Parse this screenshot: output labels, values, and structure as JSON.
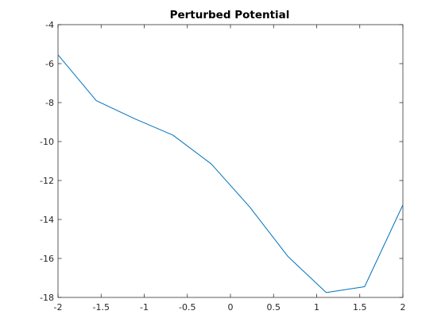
{
  "chart_data": {
    "type": "line",
    "title": "Perturbed Potential",
    "xlabel": "",
    "ylabel": "",
    "xlim": [
      -2,
      2
    ],
    "ylim": [
      -18,
      -4
    ],
    "xticks": [
      -2,
      -1.5,
      -1,
      -0.5,
      0,
      0.5,
      1,
      1.5,
      2
    ],
    "xtick_labels": [
      "-2",
      "-1.5",
      "-1",
      "-0.5",
      "0",
      "0.5",
      "1",
      "1.5",
      "2"
    ],
    "yticks": [
      -4,
      -6,
      -8,
      -10,
      -12,
      -14,
      -16,
      -18
    ],
    "ytick_labels": [
      "-4",
      "-6",
      "-8",
      "-10",
      "-12",
      "-14",
      "-16",
      "-18"
    ],
    "grid": false,
    "box": true,
    "series": [
      {
        "color": "#0072BD",
        "x": [
          -2.0,
          -1.556,
          -1.111,
          -0.667,
          -0.222,
          0.222,
          0.667,
          1.111,
          1.556,
          2.0
        ],
        "y": [
          -5.55,
          -7.9,
          -8.83,
          -9.67,
          -11.15,
          -13.35,
          -15.9,
          -17.75,
          -17.45,
          -13.25
        ]
      }
    ]
  }
}
